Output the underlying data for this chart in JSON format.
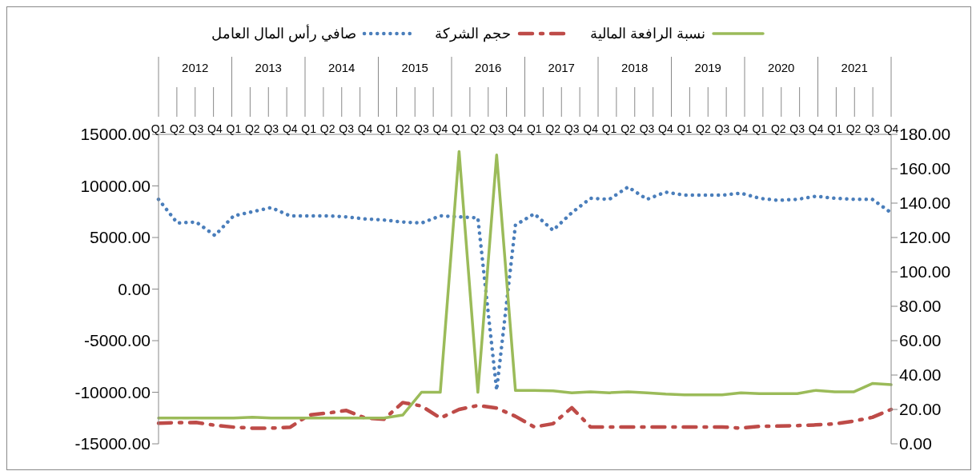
{
  "chart_data": {
    "type": "line",
    "categories": [
      "Q1",
      "Q2",
      "Q3",
      "Q4",
      "Q1",
      "Q2",
      "Q3",
      "Q4",
      "Q1",
      "Q2",
      "Q3",
      "Q4",
      "Q1",
      "Q2",
      "Q3",
      "Q4",
      "Q1",
      "Q2",
      "Q3",
      "Q4",
      "Q1",
      "Q2",
      "Q3",
      "Q4",
      "Q1",
      "Q2",
      "Q3",
      "Q4",
      "Q1",
      "Q2",
      "Q3",
      "Q4",
      "Q1",
      "Q2",
      "Q3",
      "Q4",
      "Q1",
      "Q2",
      "Q3",
      "Q4"
    ],
    "annotations": [
      "2012",
      "2013",
      "2014",
      "2015",
      "2016",
      "2017",
      "2018",
      "2019",
      "2020",
      "2021"
    ],
    "series": [
      {
        "name": "صافي رأس المال العامل",
        "color": "#4a7ebb",
        "line_style": "dotted",
        "values": [
          8700,
          6400,
          6500,
          5200,
          7100,
          7500,
          7900,
          7100,
          7100,
          7100,
          7000,
          6800,
          6700,
          6500,
          6400,
          7100,
          7000,
          6900,
          -9800,
          6200,
          7300,
          5700,
          7400,
          8800,
          8700,
          9900,
          8700,
          9400,
          9100,
          9100,
          9100,
          9300,
          8800,
          8600,
          8700,
          9000,
          8800,
          8700,
          8700,
          7400
        ]
      },
      {
        "name": "حجم الشركة",
        "color": "#be4b48",
        "line_style": "dashed",
        "axis": "y2",
        "values": [
          12,
          12.3,
          12.4,
          10.8,
          9.7,
          9.1,
          9.1,
          9.6,
          16.7,
          17.9,
          19.4,
          15,
          14.3,
          24,
          22,
          15,
          20,
          22.3,
          20.8,
          16,
          9.8,
          11.7,
          21,
          9.8,
          9.8,
          9.8,
          9.8,
          9.8,
          9.8,
          9.8,
          9.8,
          9.1,
          10.2,
          10.3,
          10.6,
          11,
          11.6,
          13.2,
          15.4,
          20
        ]
      },
      {
        "name": "نسبة الرافعة المالية",
        "color": "#9bbb59",
        "line_style": "solid",
        "axis": "y2",
        "values": [
          15,
          15,
          15,
          15,
          15,
          15.5,
          15,
          15,
          15,
          15,
          15,
          15,
          15,
          16.7,
          30,
          30,
          170,
          30,
          168,
          31,
          31.1,
          30.8,
          29.7,
          30.2,
          29.7,
          30.2,
          29.7,
          28.9,
          28.5,
          28.5,
          28.5,
          29.7,
          29.2,
          29.2,
          29.2,
          31.1,
          30.2,
          30.2,
          35.1,
          34.4
        ]
      }
    ],
    "ylim": [
      -15000,
      15000
    ],
    "yticks": [
      {
        "value": -15000,
        "label": "-15000.00"
      },
      {
        "value": -10000,
        "label": "-10000.00"
      },
      {
        "value": -5000,
        "label": "-5000.00"
      },
      {
        "value": 0,
        "label": "0.00"
      },
      {
        "value": 5000,
        "label": "5000.00"
      },
      {
        "value": 10000,
        "label": "10000.00"
      },
      {
        "value": 15000,
        "label": "15000.00"
      }
    ],
    "y2lim": [
      0,
      180
    ],
    "y2ticks": [
      {
        "value": 0,
        "label": "0.00"
      },
      {
        "value": 20,
        "label": "20.00"
      },
      {
        "value": 40,
        "label": "40.00"
      },
      {
        "value": 60,
        "label": "60.00"
      },
      {
        "value": 80,
        "label": "80.00"
      },
      {
        "value": 100,
        "label": "100.00"
      },
      {
        "value": 120,
        "label": "120.00"
      },
      {
        "value": 140,
        "label": "140.00"
      },
      {
        "value": 160,
        "label": "160.00"
      },
      {
        "value": 180,
        "label": "180.00"
      }
    ],
    "grid": false,
    "legend": "top",
    "marker": "none"
  }
}
